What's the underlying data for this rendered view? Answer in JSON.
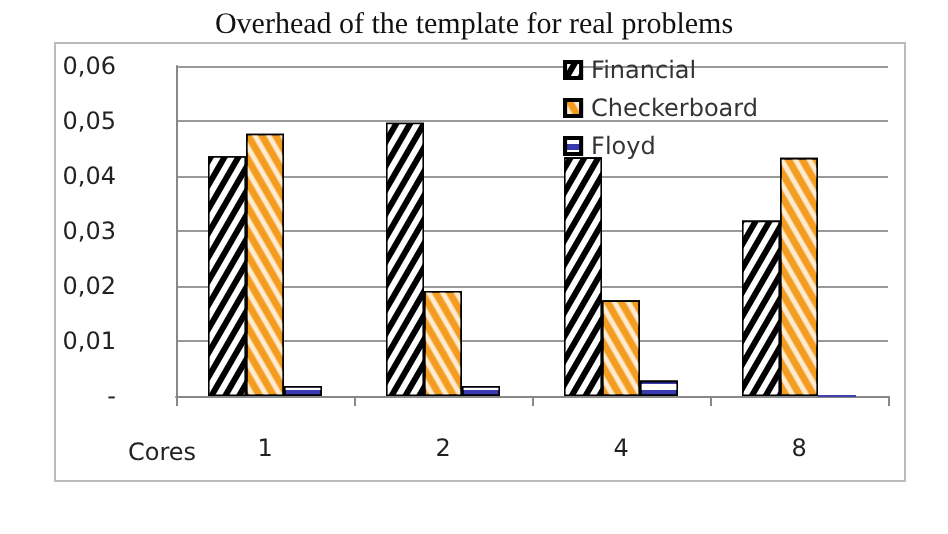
{
  "chart_data": {
    "type": "bar",
    "title": "Overhead of the template for real problems",
    "xlabel": "Cores",
    "categories": [
      "1",
      "2",
      "4",
      "8"
    ],
    "series": [
      {
        "name": "Financial",
        "color": "#000000",
        "values": [
          0.0436,
          0.0497,
          0.0434,
          0.0319
        ]
      },
      {
        "name": "Checkerboard",
        "color": "#f39c1f",
        "values": [
          0.0477,
          0.0191,
          0.0174,
          0.0433
        ]
      },
      {
        "name": "Floyd",
        "color": "#3a3ab0",
        "values": [
          0.0018,
          0.0018,
          0.0028,
          0
        ]
      }
    ],
    "ylim": [
      0,
      0.06
    ],
    "yticks": [
      {
        "value": 0,
        "label": "-"
      },
      {
        "value": 0.01,
        "label": "0,01"
      },
      {
        "value": 0.02,
        "label": "0,02"
      },
      {
        "value": 0.03,
        "label": "0,03"
      },
      {
        "value": 0.04,
        "label": "0,04"
      },
      {
        "value": 0.05,
        "label": "0,05"
      },
      {
        "value": 0.06,
        "label": "0,06"
      }
    ],
    "grid": "y",
    "legend": "top right"
  }
}
